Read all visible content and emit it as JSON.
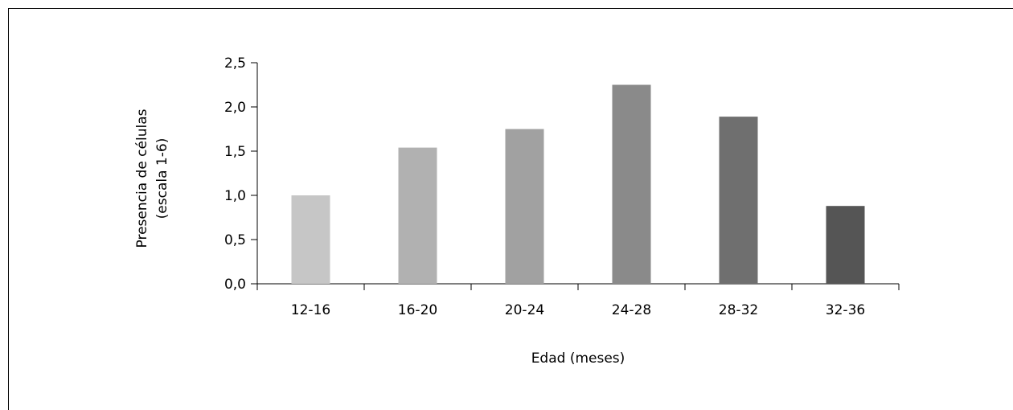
{
  "chart_data": {
    "type": "bar",
    "title": "",
    "categories": [
      "12-16",
      "16-20",
      "20-24",
      "24-28",
      "28-32",
      "32-36"
    ],
    "values": [
      1.0,
      1.54,
      1.75,
      2.25,
      1.89,
      0.88
    ],
    "bar_colors": [
      "#c6c6c6",
      "#b1b1b1",
      "#a1a1a1",
      "#8a8a8a",
      "#6f6f6f",
      "#555555"
    ],
    "xlabel": "Edad (meses)",
    "ylabel_line1": "Presencia de células",
    "ylabel_line2": "(escala 1-6)",
    "ylim": [
      0,
      2.5
    ],
    "yticks": [
      0.0,
      0.5,
      1.0,
      1.5,
      2.0,
      2.5
    ],
    "ytick_labels": [
      "0,0",
      "0,5",
      "1,0",
      "1,5",
      "2,0",
      "2,5"
    ],
    "grid": false,
    "legend": "none"
  }
}
